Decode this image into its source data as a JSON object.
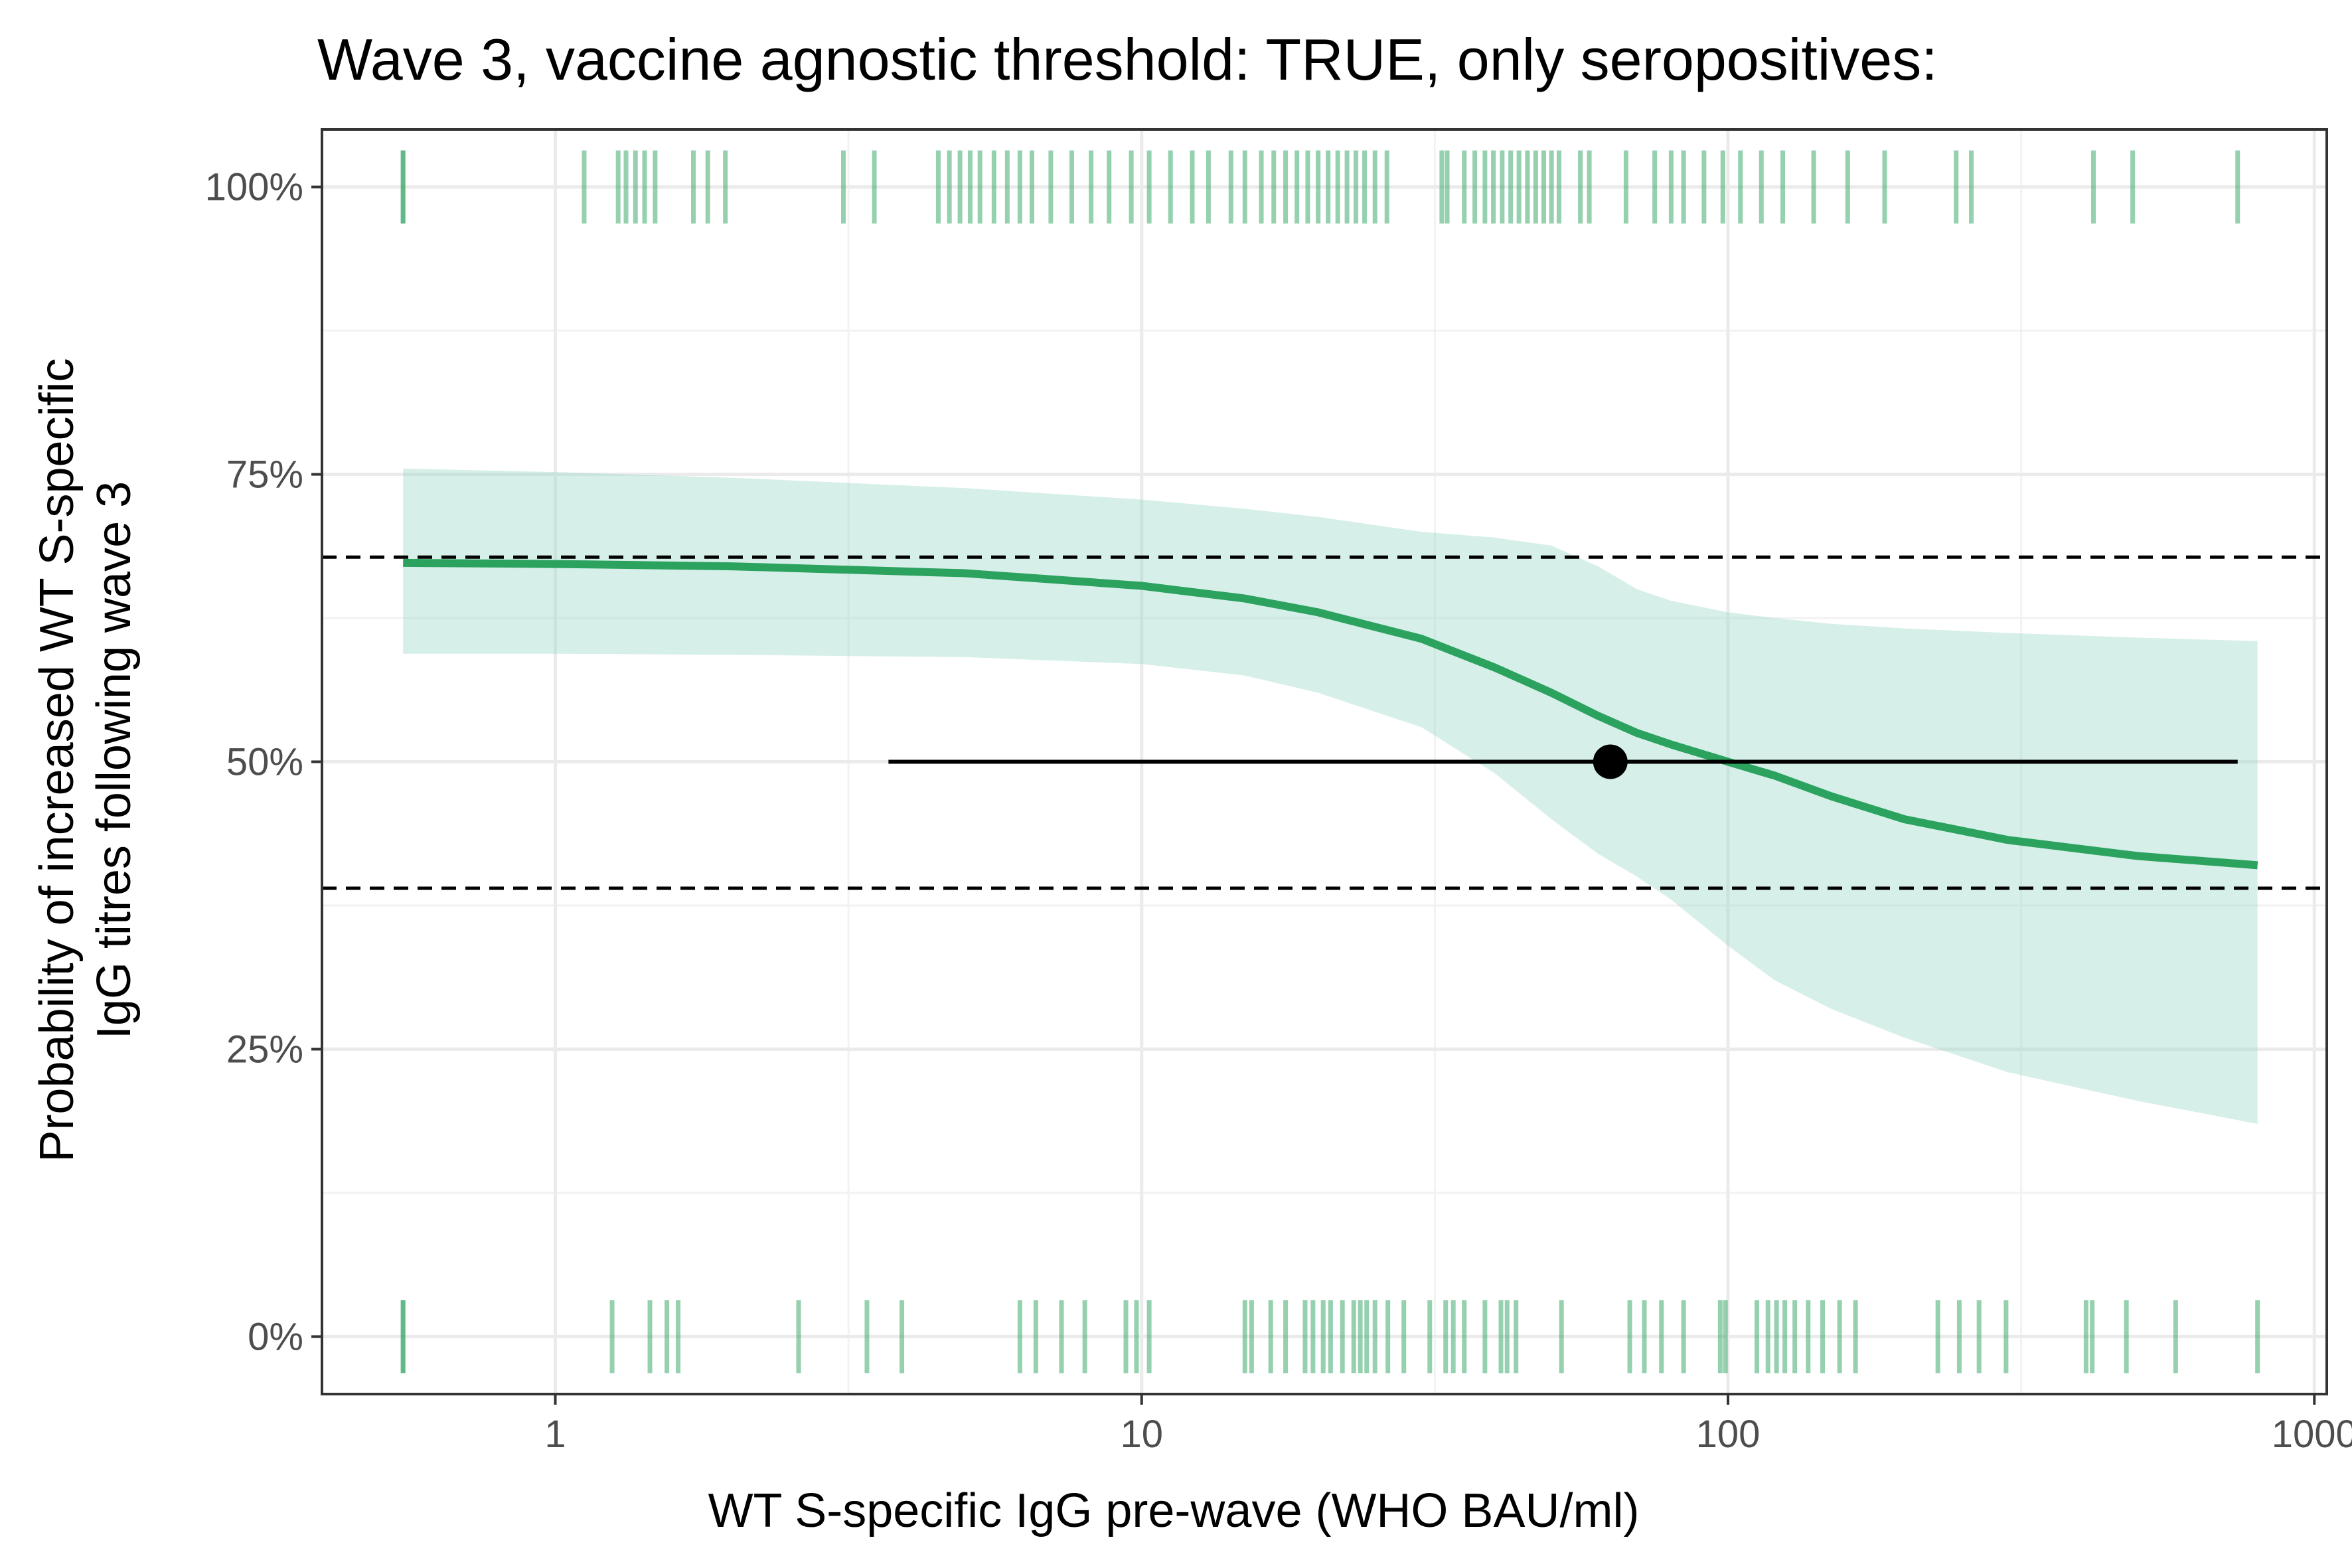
{
  "chart_data": {
    "type": "line",
    "title": "Wave 3, vaccine agnostic threshold: TRUE, only seropositives:",
    "xlabel": "WT S-specific IgG pre-wave (WHO BAU/ml)",
    "ylabel_line1": "Probability of increased WT S-specific",
    "ylabel_line2": "IgG titres following wave 3",
    "x_scale": "log10",
    "xlim": [
      0.4,
      1050
    ],
    "ylim": [
      -0.05,
      1.05
    ],
    "x_ticks": [
      1,
      10,
      100,
      1000
    ],
    "x_tick_labels": [
      "1",
      "10",
      "100",
      "1000"
    ],
    "y_ticks": [
      0,
      0.25,
      0.5,
      0.75,
      1.0
    ],
    "y_tick_labels": [
      "0%",
      "25%",
      "50%",
      "75%",
      "100%"
    ],
    "grid": true,
    "colors": {
      "curve": "#2ca25f",
      "ribbon": "#99d8c9",
      "rug": "#2ca25f",
      "reference": "#000000"
    },
    "series": [
      {
        "name": "fitted probability",
        "x": [
          0.55,
          1,
          2,
          5,
          10,
          15,
          20,
          30,
          40,
          50,
          60,
          70,
          80,
          100,
          120,
          150,
          200,
          300,
          500,
          800
        ],
        "y": [
          0.673,
          0.672,
          0.67,
          0.664,
          0.653,
          0.642,
          0.63,
          0.607,
          0.582,
          0.56,
          0.54,
          0.525,
          0.515,
          0.5,
          0.488,
          0.47,
          0.45,
          0.432,
          0.418,
          0.41
        ]
      }
    ],
    "ribbon": {
      "x": [
        0.55,
        1,
        2,
        5,
        10,
        15,
        20,
        30,
        40,
        50,
        60,
        70,
        80,
        100,
        120,
        150,
        200,
        300,
        500,
        800
      ],
      "lower": [
        0.594,
        0.594,
        0.593,
        0.591,
        0.585,
        0.575,
        0.56,
        0.53,
        0.49,
        0.45,
        0.42,
        0.4,
        0.38,
        0.34,
        0.31,
        0.285,
        0.26,
        0.23,
        0.205,
        0.185
      ],
      "upper": [
        0.755,
        0.752,
        0.747,
        0.738,
        0.728,
        0.72,
        0.713,
        0.7,
        0.695,
        0.688,
        0.67,
        0.65,
        0.64,
        0.63,
        0.625,
        0.62,
        0.616,
        0.612,
        0.608,
        0.605
      ]
    },
    "reference_lines": [
      {
        "style": "dashed",
        "y": 0.678
      },
      {
        "style": "dashed",
        "y": 0.39
      }
    ],
    "threshold_point": {
      "x": 63,
      "y": 0.5
    },
    "threshold_interval": {
      "x_low": 3.7,
      "x_high": 740,
      "y": 0.5
    },
    "rug_top": {
      "y": 1.0,
      "x": [
        0.55,
        0.55,
        1.12,
        1.28,
        1.32,
        1.37,
        1.42,
        1.48,
        1.72,
        1.82,
        1.95,
        3.1,
        3.5,
        4.5,
        4.7,
        4.9,
        5.1,
        5.3,
        5.6,
        5.9,
        6.2,
        6.5,
        7.0,
        7.6,
        8.2,
        8.8,
        9.6,
        10.3,
        11.2,
        12.2,
        13.0,
        14.2,
        15.0,
        16.0,
        16.8,
        17.6,
        18.4,
        19.2,
        20.0,
        20.8,
        21.6,
        22.4,
        23.2,
        24.0,
        25.0,
        26.2,
        32.5,
        33.2,
        35.5,
        37.0,
        38.5,
        39.8,
        41.2,
        42.6,
        44.0,
        45.5,
        47.0,
        48.5,
        50.0,
        51.5,
        56.0,
        58.0,
        67.0,
        75.0,
        80.0,
        84.0,
        91.0,
        98.0,
        105.0,
        114.0,
        124.0,
        140.0,
        160.0,
        185.0,
        245.0,
        260.0,
        420.0,
        490.0,
        740.0
      ]
    },
    "rug_bottom": {
      "y": 0.0,
      "x": [
        0.55,
        0.55,
        1.25,
        1.45,
        1.55,
        1.62,
        2.6,
        3.4,
        3.9,
        6.2,
        6.6,
        7.3,
        8.0,
        9.4,
        9.8,
        10.3,
        15.0,
        15.4,
        16.6,
        17.6,
        19.0,
        19.6,
        20.4,
        21.0,
        22.0,
        23.0,
        23.6,
        24.2,
        25.0,
        26.3,
        28.0,
        31.0,
        33.0,
        34.0,
        35.5,
        38.5,
        41.0,
        42.0,
        43.5,
        52.0,
        68.0,
        72.0,
        77.0,
        84.0,
        97.0,
        99.0,
        112.0,
        117.0,
        121.0,
        125.0,
        130.0,
        137.0,
        145.0,
        155.0,
        165.0,
        228.0,
        248.0,
        268.0,
        298.0,
        408.0,
        418.0,
        478.0,
        580.0,
        800.0
      ]
    }
  }
}
